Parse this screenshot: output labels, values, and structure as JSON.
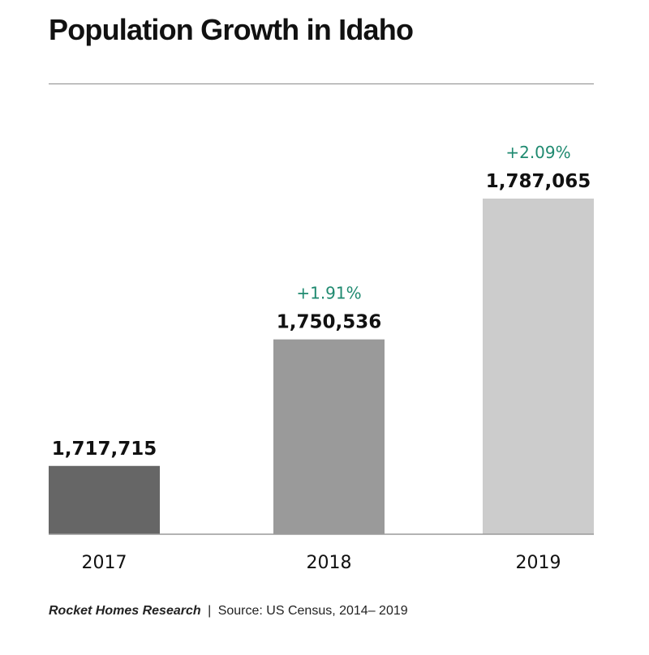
{
  "header": {
    "title": "Population Growth in Idaho"
  },
  "chart_data": {
    "type": "bar",
    "title": "Population Growth in Idaho",
    "xlabel": "",
    "ylabel": "",
    "categories": [
      "2017",
      "2018",
      "2019"
    ],
    "values": [
      1717715,
      1750536,
      1787065
    ],
    "value_labels": [
      "1,717,715",
      "1,750,536",
      "1,787,065"
    ],
    "growth_labels": [
      "",
      "+1.91%",
      "+2.09%"
    ],
    "bar_colors": [
      "#666666",
      "#9a9a9a",
      "#cccccc"
    ],
    "growth_color": "#1f8a70",
    "ylim": [
      1700000,
      1790000
    ],
    "grid": false,
    "legend": "none"
  },
  "footer": {
    "brand": "Rocket Homes Research",
    "separator": "|",
    "source": "Source:  US Census, 2014– 2019"
  }
}
